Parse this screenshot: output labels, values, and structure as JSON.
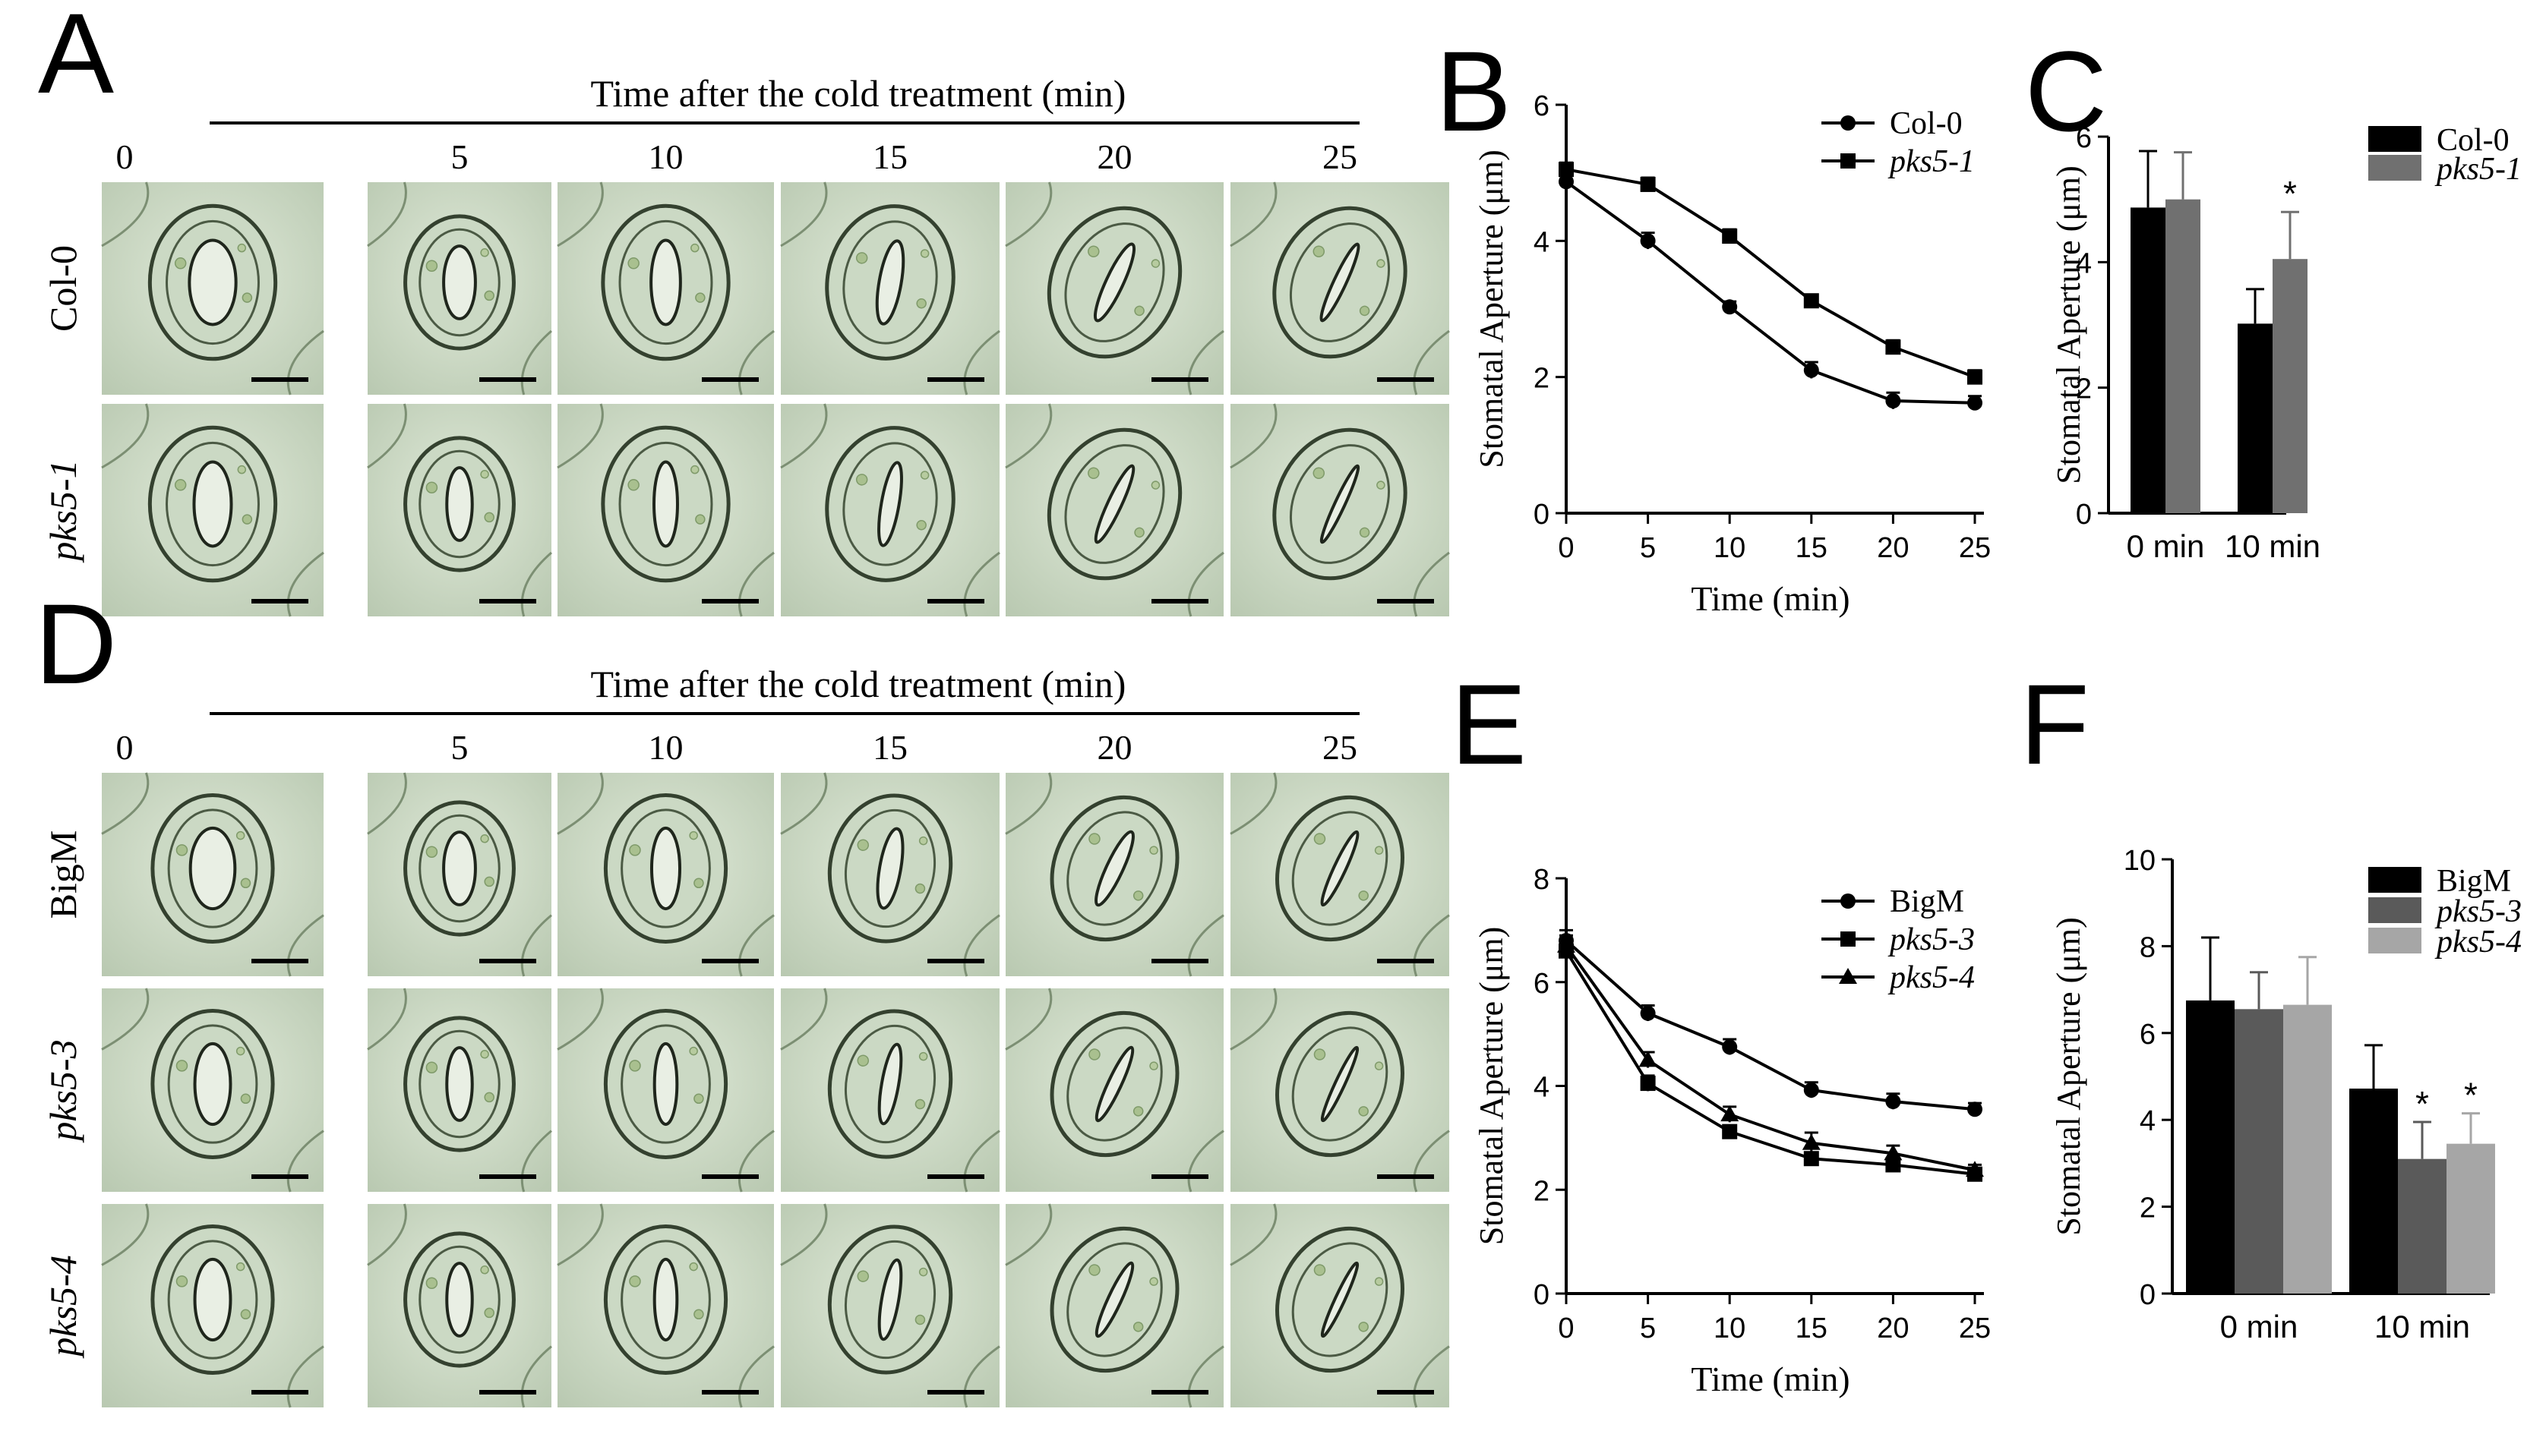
{
  "panels": {
    "A": {
      "letter": "A",
      "header": "Time after the cold treatment (min)",
      "times": [
        "0",
        "5",
        "10",
        "15",
        "20",
        "25"
      ],
      "rows": [
        {
          "label": "Col-0",
          "italic": false
        },
        {
          "label": "pks5-1",
          "italic": true
        }
      ]
    },
    "D": {
      "letter": "D",
      "header": "Time after the cold treatment (min)",
      "times": [
        "0",
        "5",
        "10",
        "15",
        "20",
        "25"
      ],
      "rows": [
        {
          "label": "BigM",
          "italic": false
        },
        {
          "label": "pks5-3",
          "italic": true
        },
        {
          "label": "pks5-4",
          "italic": true
        }
      ]
    },
    "B": {
      "letter": "B"
    },
    "C": {
      "letter": "C"
    },
    "E": {
      "letter": "E"
    },
    "F": {
      "letter": "F"
    }
  },
  "chart_data": [
    {
      "id": "B",
      "type": "line",
      "xlabel": "Time (min)",
      "ylabel": "Stomatal Aperture (μm)",
      "x": [
        0,
        5,
        10,
        15,
        20,
        25
      ],
      "xticks": [
        "0",
        "5",
        "10",
        "15",
        "20",
        "25"
      ],
      "yticks": [
        "0",
        "2",
        "4",
        "6"
      ],
      "xlim": [
        0,
        25
      ],
      "ylim": [
        0,
        6
      ],
      "legend_position": "top-right",
      "series": [
        {
          "name": "Col-0",
          "italic": false,
          "marker": "circle",
          "values": [
            4.87,
            4.0,
            3.03,
            2.1,
            1.65,
            1.62
          ],
          "errors": [
            0.1,
            0.12,
            0.08,
            0.12,
            0.12,
            0.1
          ]
        },
        {
          "name": "pks5-1",
          "italic": true,
          "marker": "square",
          "values": [
            5.05,
            4.83,
            4.07,
            3.12,
            2.44,
            2.0
          ],
          "errors": [
            0.1,
            0.1,
            0.1,
            0.08,
            0.1,
            0.1
          ]
        }
      ]
    },
    {
      "id": "C",
      "type": "bar",
      "xlabel": "",
      "ylabel": "Stomatal Aperture (μm)",
      "categories": [
        "0 min",
        "10 min"
      ],
      "yticks": [
        "0",
        "2",
        "4",
        "6"
      ],
      "ylim": [
        0,
        6
      ],
      "legend_position": "top-right",
      "series": [
        {
          "name": "Col-0",
          "italic": false,
          "color": "#000000",
          "values": [
            4.87,
            3.02
          ],
          "errors": [
            0.9,
            0.55
          ],
          "marks": [
            "",
            ""
          ]
        },
        {
          "name": "pks5-1",
          "italic": true,
          "color": "#707070",
          "values": [
            5.0,
            4.05
          ],
          "errors": [
            0.75,
            0.75
          ],
          "marks": [
            "",
            "*"
          ]
        }
      ]
    },
    {
      "id": "E",
      "type": "line",
      "xlabel": "Time (min)",
      "ylabel": "Stomatal Aperture (μm)",
      "x": [
        0,
        5,
        10,
        15,
        20,
        25
      ],
      "xticks": [
        "0",
        "5",
        "10",
        "15",
        "20",
        "25"
      ],
      "yticks": [
        "0",
        "2",
        "4",
        "6",
        "8"
      ],
      "xlim": [
        0,
        25
      ],
      "ylim": [
        0,
        8
      ],
      "legend_position": "top-right",
      "series": [
        {
          "name": "BigM",
          "italic": false,
          "marker": "circle",
          "values": [
            6.8,
            5.4,
            4.75,
            3.92,
            3.7,
            3.55
          ],
          "errors": [
            0.2,
            0.15,
            0.15,
            0.15,
            0.15,
            0.12
          ]
        },
        {
          "name": "pks5-3",
          "italic": true,
          "marker": "square",
          "values": [
            6.6,
            4.05,
            3.12,
            2.6,
            2.48,
            2.3
          ],
          "errors": [
            0.2,
            0.15,
            0.12,
            0.12,
            0.12,
            0.1
          ]
        },
        {
          "name": "pks5-4",
          "italic": true,
          "marker": "triangle",
          "values": [
            6.7,
            4.5,
            3.45,
            2.9,
            2.7,
            2.38
          ],
          "errors": [
            0.2,
            0.15,
            0.15,
            0.2,
            0.15,
            0.1
          ]
        }
      ]
    },
    {
      "id": "F",
      "type": "bar",
      "xlabel": "",
      "ylabel": "Stomatal Aperture (μm)",
      "categories": [
        "0 min",
        "10 min"
      ],
      "yticks": [
        "0",
        "2",
        "4",
        "6",
        "8",
        "10"
      ],
      "ylim": [
        0,
        10
      ],
      "legend_position": "top-right",
      "series": [
        {
          "name": "BigM",
          "italic": false,
          "color": "#000000",
          "values": [
            6.75,
            4.72
          ],
          "errors": [
            1.45,
            1.0
          ],
          "marks": [
            "",
            ""
          ]
        },
        {
          "name": "pks5-3",
          "italic": true,
          "color": "#5a5a5a",
          "values": [
            6.55,
            3.1
          ],
          "errors": [
            0.85,
            0.85
          ],
          "marks": [
            "",
            "*"
          ]
        },
        {
          "name": "pks5-4",
          "italic": true,
          "color": "#a6a6a6",
          "values": [
            6.65,
            3.45
          ],
          "errors": [
            1.1,
            0.7
          ],
          "marks": [
            "",
            "*"
          ]
        }
      ]
    }
  ]
}
